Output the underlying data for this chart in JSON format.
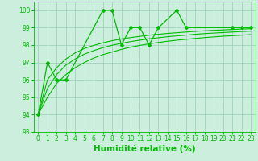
{
  "x": [
    0,
    1,
    2,
    3,
    4,
    5,
    6,
    7,
    8,
    9,
    10,
    11,
    12,
    13,
    14,
    15,
    16,
    17,
    18,
    19,
    20,
    21,
    22,
    23
  ],
  "jagged_x": [
    0,
    1,
    2,
    3,
    7,
    8,
    9,
    10,
    11,
    12,
    13,
    15,
    16,
    21,
    22,
    23
  ],
  "jagged_y": [
    94,
    97,
    96,
    96,
    100,
    100,
    98,
    99,
    99,
    98,
    99,
    100,
    99,
    99,
    99,
    99
  ],
  "smooth_lines": [
    [
      94.0,
      95.0,
      95.8,
      96.3,
      96.7,
      97.0,
      97.25,
      97.45,
      97.6,
      97.75,
      97.88,
      97.98,
      98.07,
      98.15,
      98.22,
      98.28,
      98.33,
      98.38,
      98.43,
      98.47,
      98.51,
      98.54,
      98.57,
      98.6
    ],
    [
      94.0,
      95.5,
      96.3,
      96.85,
      97.2,
      97.48,
      97.68,
      97.85,
      97.99,
      98.1,
      98.2,
      98.28,
      98.36,
      98.42,
      98.48,
      98.53,
      98.57,
      98.62,
      98.66,
      98.69,
      98.72,
      98.75,
      98.78,
      98.8
    ],
    [
      94.0,
      96.0,
      96.7,
      97.2,
      97.55,
      97.8,
      97.98,
      98.13,
      98.25,
      98.35,
      98.43,
      98.5,
      98.57,
      98.62,
      98.67,
      98.71,
      98.75,
      98.79,
      98.82,
      98.85,
      98.87,
      98.9,
      98.92,
      98.94
    ]
  ],
  "line_color": "#00BB00",
  "bg_color": "#CCEEDD",
  "grid_color": "#99CCBB",
  "xlabel": "Humidité relative (%)",
  "ylim": [
    93,
    100.5
  ],
  "xlim": [
    -0.5,
    23.5
  ],
  "yticks": [
    93,
    94,
    95,
    96,
    97,
    98,
    99,
    100
  ],
  "xticks": [
    0,
    1,
    2,
    3,
    4,
    5,
    6,
    7,
    8,
    9,
    10,
    11,
    12,
    13,
    14,
    15,
    16,
    17,
    18,
    19,
    20,
    21,
    22,
    23
  ],
  "tick_fontsize": 5.5,
  "xlabel_fontsize": 7.5
}
